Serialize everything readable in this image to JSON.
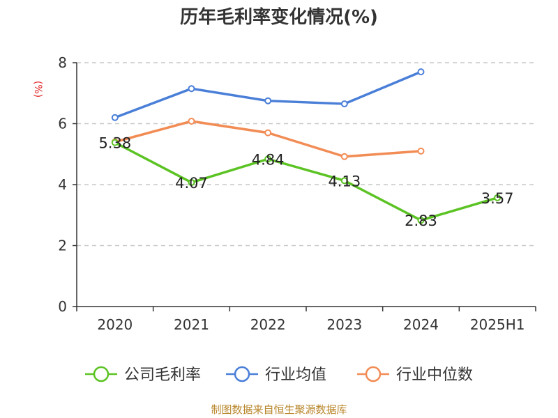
{
  "chart_data": {
    "type": "line",
    "title": "历年毛利率变化情况(%)",
    "ylabel": "(%)",
    "xlabel": "",
    "categories": [
      "2020",
      "2021",
      "2022",
      "2023",
      "2024",
      "2025H1"
    ],
    "ylim": [
      0,
      8
    ],
    "yticks": [
      "0",
      "2",
      "4",
      "6",
      "8"
    ],
    "grid": "horizontal dashed",
    "legend_position": "bottom",
    "series": [
      {
        "name": "公司毛利率",
        "color": "#5cc324",
        "values": [
          5.38,
          4.07,
          4.84,
          4.13,
          2.83,
          3.57
        ],
        "labels": [
          "5.38",
          "4.07",
          "4.84",
          "4.13",
          "2.83",
          "3.57"
        ]
      },
      {
        "name": "行业均值",
        "color": "#4a7fd8",
        "values": [
          6.2,
          7.15,
          6.75,
          6.65,
          7.7,
          null
        ]
      },
      {
        "name": "行业中位数",
        "color": "#f28c55",
        "values": [
          5.4,
          6.08,
          5.7,
          4.92,
          5.1,
          null
        ]
      }
    ]
  },
  "footer": {
    "source": "制图数据来自恒生聚源数据库"
  }
}
